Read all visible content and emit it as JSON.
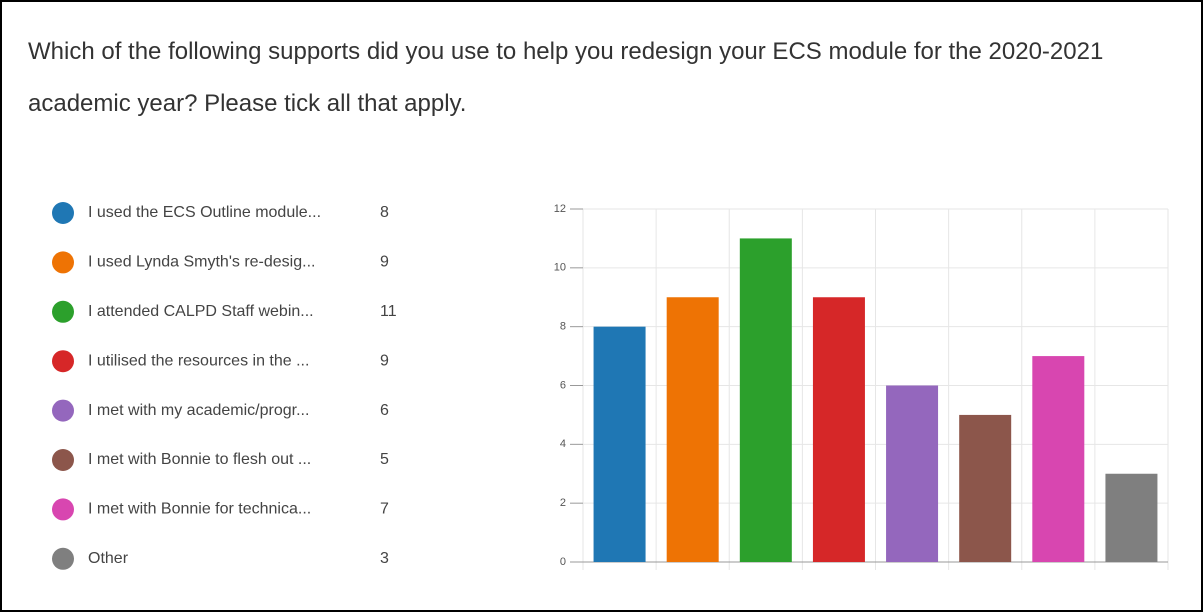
{
  "chart_data": {
    "type": "bar",
    "title": "Which of the following supports did you use to help you redesign your ECS module for the 2020-2021 academic year? Please tick all that apply.",
    "categories": [
      "I used the ECS Outline module...",
      "I used Lynda Smyth's re-desig...",
      "I attended CALPD Staff webin...",
      "I utilised the resources in the ...",
      "I met with my academic/progr...",
      "I met with Bonnie to flesh out ...",
      "I met with Bonnie for technica...",
      "Other"
    ],
    "values": [
      8,
      9,
      11,
      9,
      6,
      5,
      7,
      3
    ],
    "colors": [
      "#1f77b4",
      "#ee7304",
      "#2ca02c",
      "#d62728",
      "#9467bd",
      "#8c564b",
      "#d846b0",
      "#7f7f7f"
    ],
    "ylim": [
      0,
      12
    ],
    "yticks": [
      0,
      2,
      4,
      6,
      8,
      10,
      12
    ],
    "grid": true,
    "legend": "left"
  }
}
